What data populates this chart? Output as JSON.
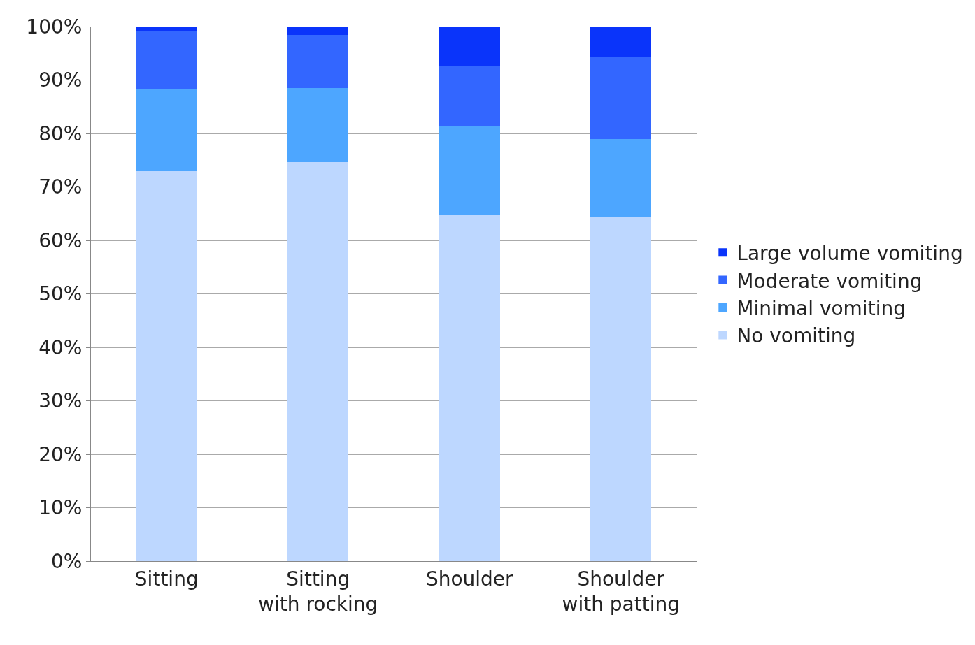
{
  "chart_data": {
    "type": "bar",
    "stacked": true,
    "categories": [
      "Sitting",
      "Sitting with rocking",
      "Shoulder",
      "Shoulder with patting"
    ],
    "series": [
      {
        "name": "No vomiting",
        "color": "#bdd7ff",
        "values": [
          73.0,
          74.7,
          64.8,
          64.5
        ]
      },
      {
        "name": "Minimal vomiting",
        "color": "#4da6ff",
        "values": [
          15.4,
          13.8,
          16.7,
          14.5
        ]
      },
      {
        "name": "Moderate vomiting",
        "color": "#3366ff",
        "values": [
          10.8,
          9.9,
          11.1,
          15.4
        ]
      },
      {
        "name": "Large volume vomiting",
        "color": "#0a34fa",
        "values": [
          0.8,
          1.6,
          7.4,
          5.6
        ]
      }
    ],
    "ylim": [
      0,
      100
    ],
    "yticks": [
      {
        "value": 0,
        "label": "0%"
      },
      {
        "value": 10,
        "label": "10%"
      },
      {
        "value": 20,
        "label": "20%"
      },
      {
        "value": 30,
        "label": "30%"
      },
      {
        "value": 40,
        "label": "40%"
      },
      {
        "value": 50,
        "label": "50%"
      },
      {
        "value": 60,
        "label": "60%"
      },
      {
        "value": 70,
        "label": "70%"
      },
      {
        "value": 80,
        "label": "80%"
      },
      {
        "value": 90,
        "label": "90%"
      },
      {
        "value": 100,
        "label": "100%"
      }
    ],
    "grid": "y",
    "legend": "right"
  }
}
